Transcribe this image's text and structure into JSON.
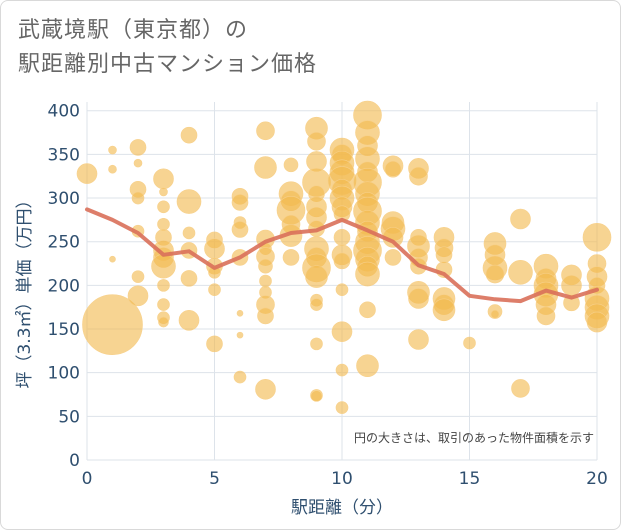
{
  "title_line1": "武蔵境駅（東京都）の",
  "title_line2": "駅距離別中古マンション価格",
  "chart_data": {
    "type": "scatter",
    "title": "武蔵境駅（東京都）の駅距離別中古マンション価格",
    "xlabel": "駅距離（分）",
    "ylabel": "坪（3.3㎡）単価（万円）",
    "note": "円の大きさは、取引のあった物件面積を示す",
    "xlim": [
      0,
      20
    ],
    "ylim": [
      0,
      410
    ],
    "xticks": [
      0,
      5,
      10,
      15,
      20
    ],
    "yticks": [
      0,
      50,
      100,
      150,
      200,
      250,
      300,
      350,
      400
    ],
    "grid": true,
    "colors": {
      "bubble": "#f2b94f",
      "line": "#d9705a",
      "axis_text": "#2f4f6f"
    },
    "bubbles": [
      [
        0,
        328,
        10
      ],
      [
        1,
        355,
        4
      ],
      [
        1,
        333,
        4
      ],
      [
        1,
        155,
        30
      ],
      [
        1,
        230,
        3
      ],
      [
        2,
        358,
        8
      ],
      [
        2,
        340,
        4
      ],
      [
        2,
        310,
        8
      ],
      [
        2,
        300,
        6
      ],
      [
        2,
        262,
        6
      ],
      [
        2,
        210,
        6
      ],
      [
        2,
        188,
        10
      ],
      [
        3,
        322,
        10
      ],
      [
        3,
        307,
        4
      ],
      [
        3,
        290,
        6
      ],
      [
        3,
        270,
        6
      ],
      [
        3,
        255,
        8
      ],
      [
        3,
        240,
        10
      ],
      [
        3,
        232,
        10
      ],
      [
        3,
        222,
        12
      ],
      [
        3,
        200,
        6
      ],
      [
        3,
        178,
        6
      ],
      [
        3,
        163,
        6
      ],
      [
        3,
        158,
        5
      ],
      [
        4,
        372,
        8
      ],
      [
        4,
        296,
        12
      ],
      [
        4,
        260,
        6
      ],
      [
        4,
        240,
        8
      ],
      [
        4,
        208,
        8
      ],
      [
        4,
        160,
        10
      ],
      [
        5,
        252,
        8
      ],
      [
        5,
        242,
        10
      ],
      [
        5,
        222,
        8
      ],
      [
        5,
        215,
        6
      ],
      [
        5,
        195,
        6
      ],
      [
        5,
        133,
        8
      ],
      [
        6,
        302,
        8
      ],
      [
        6,
        295,
        8
      ],
      [
        6,
        272,
        6
      ],
      [
        6,
        264,
        8
      ],
      [
        6,
        232,
        8
      ],
      [
        6,
        168,
        3
      ],
      [
        6,
        143,
        3
      ],
      [
        6,
        95,
        6
      ],
      [
        7,
        377,
        9
      ],
      [
        7,
        335,
        11
      ],
      [
        7,
        253,
        9
      ],
      [
        7,
        242,
        6
      ],
      [
        7,
        233,
        9
      ],
      [
        7,
        222,
        7
      ],
      [
        7,
        205,
        6
      ],
      [
        7,
        192,
        6
      ],
      [
        7,
        178,
        9
      ],
      [
        7,
        165,
        8
      ],
      [
        7,
        81,
        10
      ],
      [
        8,
        338,
        7
      ],
      [
        8,
        305,
        12
      ],
      [
        8,
        297,
        10
      ],
      [
        8,
        286,
        14
      ],
      [
        8,
        270,
        9
      ],
      [
        8,
        257,
        11
      ],
      [
        8,
        232,
        8
      ],
      [
        9,
        380,
        11
      ],
      [
        9,
        365,
        9
      ],
      [
        9,
        342,
        10
      ],
      [
        9,
        318,
        14
      ],
      [
        9,
        305,
        8
      ],
      [
        9,
        290,
        10
      ],
      [
        9,
        278,
        10
      ],
      [
        9,
        265,
        8
      ],
      [
        9,
        242,
        12
      ],
      [
        9,
        232,
        10
      ],
      [
        9,
        220,
        14
      ],
      [
        9,
        210,
        11
      ],
      [
        9,
        183,
        6
      ],
      [
        9,
        178,
        6
      ],
      [
        9,
        133,
        6
      ],
      [
        9,
        73,
        5
      ],
      [
        9,
        74,
        6
      ],
      [
        10,
        355,
        12
      ],
      [
        10,
        350,
        10
      ],
      [
        10,
        340,
        12
      ],
      [
        10,
        330,
        12
      ],
      [
        10,
        320,
        14
      ],
      [
        10,
        310,
        10
      ],
      [
        10,
        300,
        12
      ],
      [
        10,
        290,
        10
      ],
      [
        10,
        282,
        8
      ],
      [
        10,
        255,
        8
      ],
      [
        10,
        235,
        10
      ],
      [
        10,
        228,
        8
      ],
      [
        10,
        195,
        6
      ],
      [
        10,
        147,
        10
      ],
      [
        10,
        103,
        6
      ],
      [
        10,
        60,
        6
      ],
      [
        11,
        395,
        14
      ],
      [
        11,
        375,
        12
      ],
      [
        11,
        360,
        10
      ],
      [
        11,
        345,
        12
      ],
      [
        11,
        330,
        10
      ],
      [
        11,
        318,
        14
      ],
      [
        11,
        305,
        12
      ],
      [
        11,
        295,
        10
      ],
      [
        11,
        285,
        14
      ],
      [
        11,
        272,
        12
      ],
      [
        11,
        262,
        10
      ],
      [
        11,
        250,
        12
      ],
      [
        11,
        240,
        14
      ],
      [
        11,
        230,
        12
      ],
      [
        11,
        222,
        10
      ],
      [
        11,
        213,
        12
      ],
      [
        11,
        172,
        8
      ],
      [
        11,
        108,
        11
      ],
      [
        12,
        337,
        10
      ],
      [
        12,
        333,
        8
      ],
      [
        12,
        272,
        11
      ],
      [
        12,
        265,
        12
      ],
      [
        12,
        255,
        10
      ],
      [
        12,
        232,
        8
      ],
      [
        13,
        334,
        10
      ],
      [
        13,
        325,
        9
      ],
      [
        13,
        255,
        8
      ],
      [
        13,
        245,
        11
      ],
      [
        13,
        232,
        9
      ],
      [
        13,
        222,
        8
      ],
      [
        13,
        192,
        11
      ],
      [
        13,
        185,
        10
      ],
      [
        13,
        138,
        10
      ],
      [
        14,
        255,
        10
      ],
      [
        14,
        243,
        9
      ],
      [
        14,
        235,
        8
      ],
      [
        14,
        218,
        8
      ],
      [
        14,
        185,
        11
      ],
      [
        14,
        178,
        10
      ],
      [
        14,
        172,
        11
      ],
      [
        15,
        134,
        6
      ],
      [
        16,
        248,
        11
      ],
      [
        16,
        235,
        10
      ],
      [
        16,
        220,
        12
      ],
      [
        16,
        213,
        9
      ],
      [
        16,
        170,
        7
      ],
      [
        16,
        167,
        4
      ],
      [
        17,
        276,
        10
      ],
      [
        17,
        215,
        12
      ],
      [
        17,
        82,
        9
      ],
      [
        18,
        222,
        12
      ],
      [
        18,
        208,
        10
      ],
      [
        18,
        200,
        12
      ],
      [
        18,
        190,
        12
      ],
      [
        18,
        178,
        10
      ],
      [
        18,
        165,
        9
      ],
      [
        19,
        212,
        10
      ],
      [
        19,
        200,
        10
      ],
      [
        19,
        180,
        8
      ],
      [
        20,
        255,
        14
      ],
      [
        20,
        225,
        9
      ],
      [
        20,
        210,
        10
      ],
      [
        20,
        200,
        8
      ],
      [
        20,
        185,
        12
      ],
      [
        20,
        175,
        12
      ],
      [
        20,
        165,
        12
      ],
      [
        20,
        158,
        10
      ]
    ],
    "avg_line": {
      "x": [
        0,
        1,
        2,
        3,
        4,
        5,
        6,
        7,
        8,
        9,
        10,
        11,
        12,
        13,
        14,
        15,
        16,
        17,
        18,
        19,
        20
      ],
      "y": [
        287,
        275,
        260,
        235,
        239,
        220,
        232,
        250,
        260,
        263,
        275,
        263,
        250,
        223,
        213,
        188,
        184,
        182,
        194,
        186,
        195
      ]
    }
  }
}
